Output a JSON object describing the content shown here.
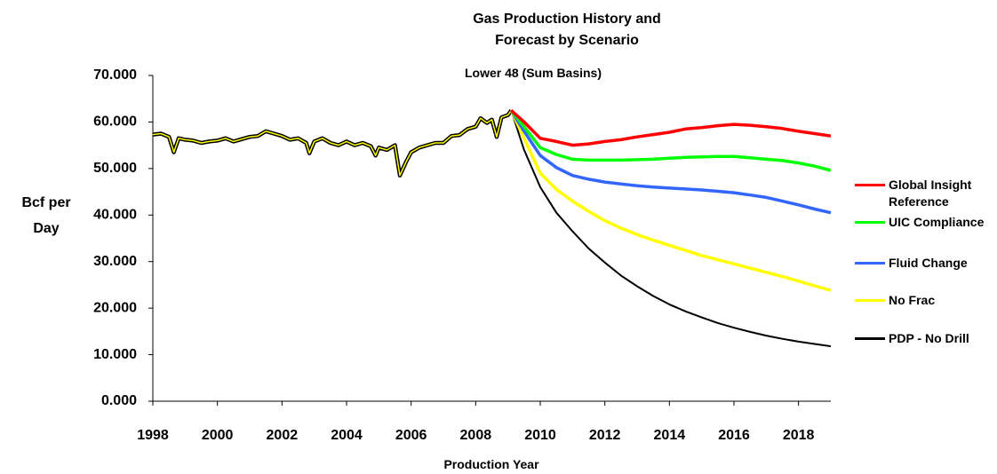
{
  "chart_data": {
    "type": "line",
    "title": "Gas Production History and Forecast by Scenario",
    "subtitle": "Lower 48 (Sum Basins)",
    "y_label": "Bcf per Day",
    "x_label": "Production Year",
    "xlim": [
      1998,
      2019
    ],
    "xticks": [
      1998,
      2000,
      2002,
      2004,
      2006,
      2008,
      2010,
      2012,
      2014,
      2016,
      2018
    ],
    "ylim": [
      0,
      70
    ],
    "yticks": [
      {
        "value": 0,
        "label": "0.000"
      },
      {
        "value": 10,
        "label": "10.000"
      },
      {
        "value": 20,
        "label": "20.000"
      },
      {
        "value": 30,
        "label": "30.000"
      },
      {
        "value": 40,
        "label": "40.000"
      },
      {
        "value": 50,
        "label": "50.000"
      },
      {
        "value": 60,
        "label": "60.000"
      },
      {
        "value": 70,
        "label": "70.000"
      }
    ],
    "series": [
      {
        "name": "Global Insight Reference",
        "color": "#ff0000",
        "x": [
          2009.1,
          2009.5,
          2010,
          2010.5,
          2011,
          2011.5,
          2012,
          2012.5,
          2013,
          2013.5,
          2014,
          2014.5,
          2015,
          2015.5,
          2016,
          2016.5,
          2017,
          2017.5,
          2018,
          2018.5,
          2019
        ],
        "values": [
          62.5,
          60,
          56.5,
          55.8,
          55.0,
          55.3,
          55.8,
          56.2,
          56.8,
          57.3,
          57.8,
          58.5,
          58.8,
          59.2,
          59.5,
          59.3,
          59.0,
          58.6,
          58.0,
          57.5,
          57.0
        ]
      },
      {
        "name": "UIC Compliance",
        "color": "#00ff00",
        "x": [
          2009.1,
          2009.5,
          2010,
          2010.5,
          2011,
          2011.5,
          2012,
          2012.5,
          2013,
          2013.5,
          2014,
          2014.5,
          2015,
          2015.5,
          2016,
          2016.5,
          2017,
          2017.5,
          2018,
          2018.5,
          2019
        ],
        "values": [
          62.5,
          59,
          54.5,
          53,
          52,
          51.8,
          51.8,
          51.8,
          51.9,
          52.0,
          52.2,
          52.4,
          52.5,
          52.6,
          52.6,
          52.3,
          52.0,
          51.7,
          51.2,
          50.5,
          49.6
        ]
      },
      {
        "name": "Fluid Change",
        "color": "#3366ff",
        "x": [
          2009.1,
          2009.5,
          2010,
          2010.5,
          2011,
          2011.5,
          2012,
          2012.5,
          2013,
          2013.5,
          2014,
          2014.5,
          2015,
          2015.5,
          2016,
          2016.5,
          2017,
          2017.5,
          2018,
          2018.5,
          2019
        ],
        "values": [
          62.5,
          58,
          52.8,
          50.2,
          48.5,
          47.7,
          47.1,
          46.7,
          46.3,
          46.0,
          45.8,
          45.6,
          45.4,
          45.1,
          44.8,
          44.3,
          43.8,
          43.0,
          42.2,
          41.3,
          40.5
        ]
      },
      {
        "name": "No Frac",
        "color": "#ffff00",
        "x": [
          2009.1,
          2009.5,
          2010,
          2010.5,
          2011,
          2011.5,
          2012,
          2012.5,
          2013,
          2013.5,
          2014,
          2014.5,
          2015,
          2015.5,
          2016,
          2016.5,
          2017,
          2017.5,
          2018,
          2018.5,
          2019
        ],
        "values": [
          62.5,
          56.5,
          49,
          45.5,
          43,
          40.8,
          38.8,
          37.2,
          35.8,
          34.6,
          33.5,
          32.4,
          31.3,
          30.4,
          29.5,
          28.6,
          27.7,
          26.8,
          25.8,
          24.8,
          23.8
        ]
      },
      {
        "name": "PDP - No Drill",
        "color": "#000000",
        "x": [
          2009.1,
          2009.5,
          2010,
          2010.5,
          2011,
          2011.5,
          2012,
          2012.5,
          2013,
          2013.5,
          2014,
          2014.5,
          2015,
          2015.5,
          2016,
          2016.5,
          2017,
          2017.5,
          2018,
          2018.5,
          2019
        ],
        "values": [
          62.5,
          54,
          46,
          40.5,
          36.5,
          32.8,
          29.8,
          27.0,
          24.7,
          22.6,
          20.8,
          19.3,
          18.0,
          16.8,
          15.8,
          14.9,
          14.1,
          13.4,
          12.8,
          12.3,
          11.8
        ]
      },
      {
        "color": "#ffff00",
        "x": [
          1998,
          1998.25,
          1998.5,
          1998.65,
          1998.8,
          1999,
          1999.25,
          1999.5,
          1999.75,
          2000,
          2000.25,
          2000.5,
          2000.75,
          2001,
          2001.25,
          2001.5,
          2001.75,
          2002,
          2002.25,
          2002.5,
          2002.75,
          2002.85,
          2003,
          2003.25,
          2003.5,
          2003.75,
          2004,
          2004.25,
          2004.5,
          2004.75,
          2004.9,
          2005,
          2005.25,
          2005.5,
          2005.65,
          2005.85,
          2006,
          2006.25,
          2006.5,
          2006.75,
          2007,
          2007.25,
          2007.5,
          2007.75,
          2008,
          2008.15,
          2008.35,
          2008.5,
          2008.65,
          2008.8,
          2009,
          2009.1
        ],
        "values": [
          57.3,
          57.5,
          56.8,
          53.5,
          56.5,
          56.2,
          56.0,
          55.5,
          55.8,
          56.0,
          56.5,
          55.8,
          56.3,
          56.8,
          57.0,
          58.0,
          57.5,
          57.0,
          56.2,
          56.5,
          55.5,
          53.3,
          55.8,
          56.5,
          55.5,
          55.0,
          55.8,
          55.0,
          55.5,
          54.8,
          52.8,
          54.5,
          54.0,
          55.0,
          48.5,
          51.5,
          53.5,
          54.5,
          55.0,
          55.5,
          55.5,
          57.0,
          57.2,
          58.5,
          59.0,
          60.8,
          59.8,
          60.5,
          56.8,
          61.0,
          61.5,
          62.5
        ]
      }
    ]
  }
}
